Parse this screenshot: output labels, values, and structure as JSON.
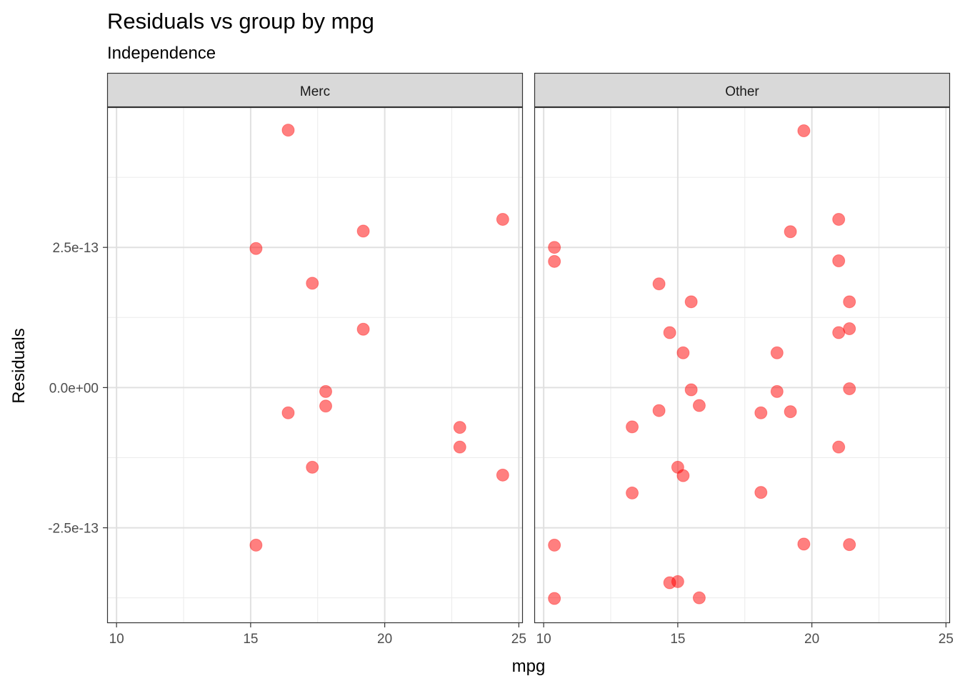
{
  "chart_data": {
    "type": "scatter",
    "title": "Residuals vs group by mpg",
    "subtitle": "Independence",
    "xlabel": "mpg",
    "ylabel": "Residuals",
    "xlim": [
      9.65,
      25.15
    ],
    "ylim": [
      -4.2e-13,
      5e-13
    ],
    "x_ticks": [
      10,
      15,
      20,
      25
    ],
    "x_tick_labels": [
      "10",
      "15",
      "20",
      "25"
    ],
    "y_ticks": [
      -2.5e-13,
      0,
      2.5e-13
    ],
    "y_tick_labels": [
      "-2.5e-13",
      "0.0e+00",
      "2.5e-13"
    ],
    "grid": true,
    "point_color": "#FF0000",
    "point_alpha": 0.5,
    "panels": [
      {
        "name": "Merc",
        "points": [
          {
            "x": 16.4,
            "y": 4.59e-13
          },
          {
            "x": 24.4,
            "y": 3e-13
          },
          {
            "x": 19.2,
            "y": 2.79e-13
          },
          {
            "x": 15.2,
            "y": 2.48e-13
          },
          {
            "x": 17.3,
            "y": 1.86e-13
          },
          {
            "x": 19.2,
            "y": 1.04e-13
          },
          {
            "x": 17.8,
            "y": -7e-15
          },
          {
            "x": 17.8,
            "y": -3.3e-14
          },
          {
            "x": 16.4,
            "y": -4.5e-14
          },
          {
            "x": 22.8,
            "y": -7.1e-14
          },
          {
            "x": 22.8,
            "y": -1.06e-13
          },
          {
            "x": 17.3,
            "y": -1.42e-13
          },
          {
            "x": 24.4,
            "y": -1.56e-13
          },
          {
            "x": 15.2,
            "y": -2.81e-13
          }
        ]
      },
      {
        "name": "Other",
        "points": [
          {
            "x": 19.7,
            "y": 4.58e-13
          },
          {
            "x": 21.0,
            "y": 3e-13
          },
          {
            "x": 19.2,
            "y": 2.78e-13
          },
          {
            "x": 10.4,
            "y": 2.5e-13
          },
          {
            "x": 10.4,
            "y": 2.25e-13
          },
          {
            "x": 21.0,
            "y": 2.26e-13
          },
          {
            "x": 14.3,
            "y": 1.85e-13
          },
          {
            "x": 15.5,
            "y": 1.53e-13
          },
          {
            "x": 21.4,
            "y": 1.53e-13
          },
          {
            "x": 21.4,
            "y": 1.05e-13
          },
          {
            "x": 14.7,
            "y": 9.8e-14
          },
          {
            "x": 21.0,
            "y": 9.8e-14
          },
          {
            "x": 15.2,
            "y": 6.2e-14
          },
          {
            "x": 18.7,
            "y": 6.2e-14
          },
          {
            "x": 15.5,
            "y": -4e-15
          },
          {
            "x": 21.4,
            "y": -2e-15
          },
          {
            "x": 18.7,
            "y": -7e-15
          },
          {
            "x": 15.8,
            "y": -3.2e-14
          },
          {
            "x": 14.3,
            "y": -4.1e-14
          },
          {
            "x": 18.1,
            "y": -4.5e-14
          },
          {
            "x": 19.2,
            "y": -4.3e-14
          },
          {
            "x": 13.3,
            "y": -7e-14
          },
          {
            "x": 21.0,
            "y": -1.06e-13
          },
          {
            "x": 15.0,
            "y": -1.42e-13
          },
          {
            "x": 15.2,
            "y": -1.57e-13
          },
          {
            "x": 13.3,
            "y": -1.88e-13
          },
          {
            "x": 18.1,
            "y": -1.87e-13
          },
          {
            "x": 10.4,
            "y": -2.81e-13
          },
          {
            "x": 19.7,
            "y": -2.79e-13
          },
          {
            "x": 21.4,
            "y": -2.8e-13
          },
          {
            "x": 14.7,
            "y": -3.48e-13
          },
          {
            "x": 15.0,
            "y": -3.46e-13
          },
          {
            "x": 10.4,
            "y": -3.76e-13
          },
          {
            "x": 15.8,
            "y": -3.75e-13
          }
        ]
      }
    ]
  }
}
